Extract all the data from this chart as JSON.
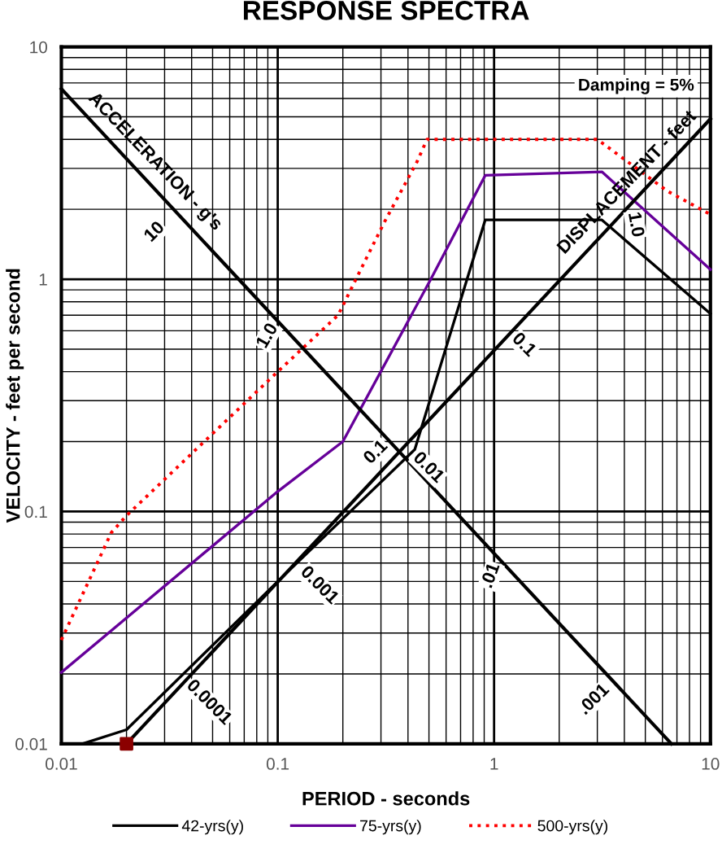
{
  "chart_data": {
    "type": "line",
    "title": "RESPONSE SPECTRA",
    "xlabel": "PERIOD - seconds",
    "ylabel": "VELOCITY - feet per second",
    "log": "xy",
    "xlim": [
      0.01,
      10
    ],
    "ylim": [
      0.01,
      10
    ],
    "xticks": [
      0.01,
      0.1,
      1,
      10
    ],
    "yticks": [
      0.01,
      0.1,
      1,
      10
    ],
    "grid": true,
    "legend": "bottom",
    "series": [
      {
        "name": "42-yrs(y)",
        "color": "#000000",
        "line_style": "solid",
        "x": [
          0.0125,
          0.02,
          0.1,
          0.43,
          0.91,
          3.15,
          10
        ],
        "values": [
          0.01,
          0.0115,
          0.05,
          0.185,
          1.8,
          1.8,
          0.71
        ]
      },
      {
        "name": "75-yrs(y)",
        "color": "#660099",
        "line_style": "solid",
        "x": [
          0.01,
          0.1,
          0.2,
          0.51,
          0.91,
          3.15,
          10
        ],
        "values": [
          0.0203,
          0.122,
          0.2,
          1.0,
          2.8,
          2.9,
          1.1
        ]
      },
      {
        "name": "500-yrs(y)",
        "color": "#ff0000",
        "line_style": "dotted",
        "x": [
          0.01,
          0.017,
          0.02,
          0.1,
          0.19,
          0.31,
          0.44,
          0.49,
          3.0,
          6.3,
          10
        ],
        "values": [
          0.028,
          0.081,
          0.096,
          0.4,
          0.7,
          1.75,
          3.2,
          4.0,
          4.0,
          2.4,
          1.9
        ]
      },
      {
        "color": "#000000",
        "line_style": "solid",
        "x": [
          0.02,
          10
        ],
        "values": [
          0.01,
          4.9
        ]
      },
      {
        "color": "#000000",
        "line_style": "solid",
        "x": [
          0.01,
          6.6
        ],
        "values": [
          6.6,
          0.01
        ]
      },
      {
        "type": "scatter",
        "color": "#8b0000",
        "marker": "square",
        "x": [
          0.02
        ],
        "values": [
          0.01
        ]
      }
    ],
    "annotations": [
      "Damping = 5%",
      "ACCELERATION - g's",
      "DISPLACEMENT - feet",
      "10",
      "1.0",
      "0.1",
      "0.1",
      "0.01",
      "0.001",
      "0.0001",
      ".01",
      ".001",
      "1.0"
    ]
  }
}
